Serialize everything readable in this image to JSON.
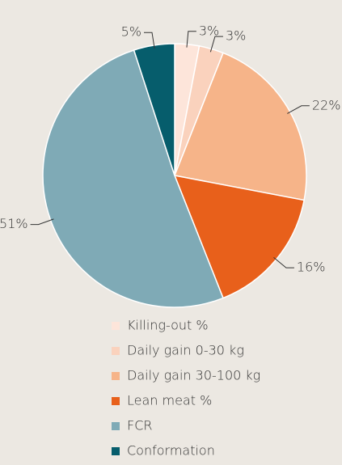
{
  "chart_data": {
    "type": "pie",
    "categories": [
      "Killing-out %",
      "Daily gain 0-30 kg",
      "Daily gain 30-100 kg",
      "Lean meat %",
      "FCR",
      "Conformation"
    ],
    "values": [
      3,
      3,
      22,
      16,
      51,
      5
    ],
    "value_labels": [
      "3%",
      "3%",
      "22%",
      "16%",
      "51%",
      "5%"
    ],
    "colors": [
      "#fde5da",
      "#fad2bd",
      "#f6b489",
      "#e8601b",
      "#7faab6",
      "#065d6c"
    ]
  }
}
